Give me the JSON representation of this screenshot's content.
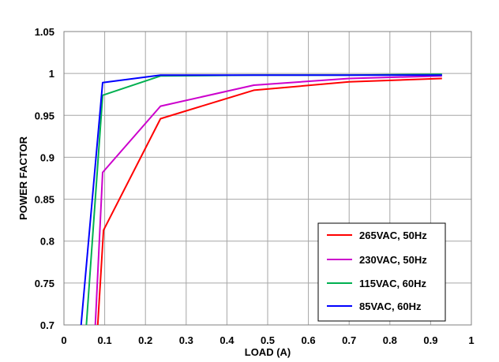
{
  "chart_data": {
    "type": "line",
    "title": "",
    "xlabel": "LOAD (A)",
    "ylabel": "POWER  FACTOR",
    "xlim": [
      0,
      1
    ],
    "ylim": [
      0.7,
      1.05
    ],
    "xticks": [
      "0",
      "0.1",
      "0.2",
      "0.3",
      "0.4",
      "0.5",
      "0.6",
      "0.7",
      "0.8",
      "0.9",
      "1"
    ],
    "yticks": [
      "1.05",
      "1",
      "0.95",
      "0.9",
      "0.85",
      "0.8",
      "0.75",
      "0.7"
    ],
    "grid": true,
    "legend_position": "bottom-right",
    "series": [
      {
        "name": "265VAC, 50Hz",
        "color": "#ff0000",
        "x": [
          0.083,
          0.097,
          0.237,
          0.466,
          0.7,
          0.928
        ],
        "y": [
          0.7,
          0.813,
          0.946,
          0.98,
          0.99,
          0.994
        ]
      },
      {
        "name": "230VAC, 50Hz",
        "color": "#cc00cc",
        "x": [
          0.077,
          0.095,
          0.237,
          0.466,
          0.7,
          0.928
        ],
        "y": [
          0.7,
          0.882,
          0.961,
          0.986,
          0.994,
          0.997
        ]
      },
      {
        "name": "115VAC, 60Hz",
        "color": "#00b050",
        "x": [
          0.055,
          0.095,
          0.237,
          0.466,
          0.7,
          0.928
        ],
        "y": [
          0.7,
          0.974,
          0.997,
          0.998,
          0.998,
          0.999
        ]
      },
      {
        "name": "85VAC, 60Hz",
        "color": "#0000ff",
        "x": [
          0.042,
          0.095,
          0.237,
          0.466,
          0.7,
          0.928
        ],
        "y": [
          0.7,
          0.989,
          0.998,
          0.998,
          0.998,
          0.998
        ]
      }
    ]
  }
}
